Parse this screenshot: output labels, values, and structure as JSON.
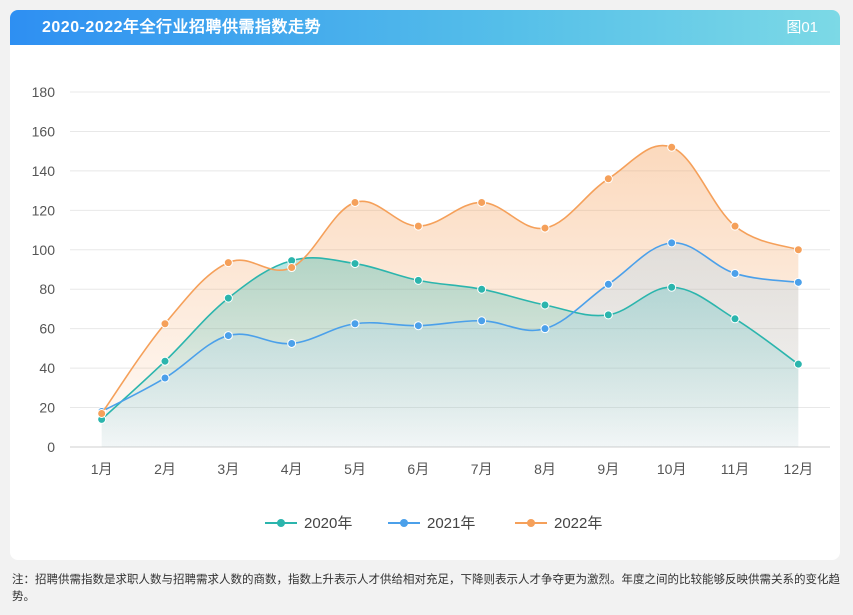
{
  "header": {
    "title": "2020-2022年全行业招聘供需指数走势",
    "tag": "图01"
  },
  "chart_data": {
    "type": "area",
    "title": "2020-2022年全行业招聘供需指数走势",
    "categories": [
      "1月",
      "2月",
      "3月",
      "4月",
      "5月",
      "6月",
      "7月",
      "8月",
      "9月",
      "10月",
      "11月",
      "12月"
    ],
    "ylim": [
      0,
      180
    ],
    "yticks": [
      0,
      20,
      40,
      60,
      80,
      100,
      120,
      140,
      160,
      180
    ],
    "grid": true,
    "legend_position": "bottom",
    "series": [
      {
        "name": "2020年",
        "color": "#2bb5ad",
        "values": [
          14,
          43.5,
          75.5,
          94.5,
          93,
          84.5,
          80,
          72,
          67,
          81,
          65,
          42
        ]
      },
      {
        "name": "2021年",
        "color": "#4ba0ea",
        "values": [
          18,
          35,
          56.5,
          52.5,
          62.5,
          61.5,
          64,
          60,
          82.5,
          103.5,
          88,
          83.5
        ]
      },
      {
        "name": "2022年",
        "color": "#f5a05a",
        "values": [
          17,
          62.5,
          93.5,
          91,
          124,
          112,
          124,
          111,
          136,
          152,
          112,
          100
        ]
      }
    ]
  },
  "note": "注：招聘供需指数是求职人数与招聘需求人数的商数，指数上升表示人才供给相对充足，下降则表示人才争夺更为激烈。年度之间的比较能够反映供需关系的变化趋势。"
}
